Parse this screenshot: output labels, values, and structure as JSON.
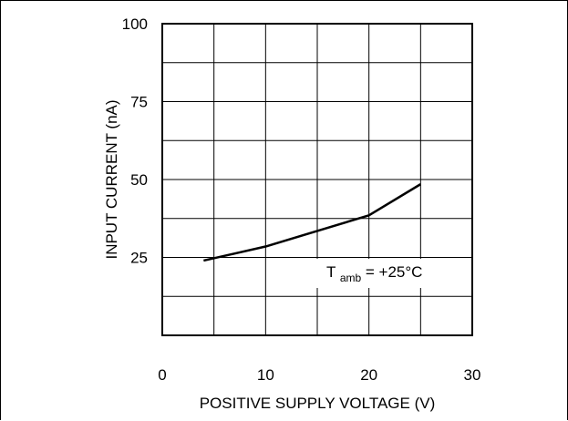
{
  "chart_data": {
    "type": "line",
    "title": "",
    "xlabel": "POSITIVE SUPPLY VOLTAGE (V)",
    "ylabel": "INPUT CURRENT (nA)",
    "xlim": [
      0,
      30
    ],
    "ylim": [
      0,
      100
    ],
    "x_ticks": [
      0,
      10,
      20,
      30
    ],
    "x_tick_labels": [
      "0",
      "10",
      "20",
      "30"
    ],
    "y_ticks": [
      25,
      50,
      75,
      100
    ],
    "y_tick_labels": [
      "25",
      "50",
      "75",
      "100"
    ],
    "x_gridlines": [
      5,
      10,
      15,
      20,
      25
    ],
    "y_gridlines": [
      12.5,
      25,
      37.5,
      50,
      62.5,
      75,
      87.5
    ],
    "grid": true,
    "series": [
      {
        "x": [
          4,
          10,
          15,
          20,
          25
        ],
        "y": [
          24,
          28.5,
          33.5,
          38.5,
          48.5
        ],
        "color": "#000000"
      }
    ],
    "annotation": {
      "main": "T",
      "subscript": "amb",
      "suffix": "= +25°C"
    }
  }
}
